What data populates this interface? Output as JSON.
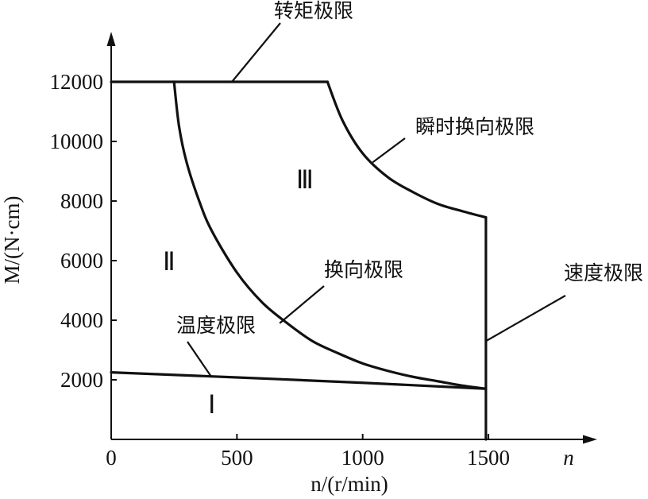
{
  "chart_data": {
    "type": "line",
    "xlabel": "n/(r/min)",
    "ylabel": "M/(N·cm)",
    "x_end_label": "n",
    "xlim": [
      0,
      1800
    ],
    "ylim": [
      0,
      13600
    ],
    "x_ticks": [
      0,
      500,
      1000,
      1500
    ],
    "y_ticks": [
      2000,
      4000,
      6000,
      8000,
      10000,
      12000
    ],
    "series": [
      {
        "name": "转矩极限",
        "x": [
          0,
          860
        ],
        "y": [
          12000,
          12000
        ]
      },
      {
        "name": "瞬时换向极限",
        "x": [
          860,
          920,
          1000,
          1100,
          1200,
          1300,
          1400,
          1490
        ],
        "y": [
          12000,
          10700,
          9600,
          8800,
          8300,
          7900,
          7650,
          7450
        ]
      },
      {
        "name": "速度极限",
        "x": [
          1490,
          1490
        ],
        "y": [
          7450,
          0
        ]
      },
      {
        "name": "换向极限",
        "x": [
          250,
          270,
          300,
          350,
          400,
          500,
          600,
          700,
          800,
          900,
          1000,
          1100,
          1200,
          1300,
          1400,
          1490
        ],
        "y": [
          12000,
          10500,
          9300,
          8000,
          7000,
          5600,
          4600,
          3900,
          3300,
          2900,
          2550,
          2300,
          2100,
          1950,
          1800,
          1700
        ]
      },
      {
        "name": "温度极限",
        "x": [
          0,
          500,
          1000,
          1490
        ],
        "y": [
          2250,
          2080,
          1900,
          1700
        ]
      }
    ],
    "annotations": [
      {
        "text": "转矩极限",
        "target": [
          480,
          12000
        ]
      },
      {
        "text": "瞬时换向极限",
        "target": [
          1040,
          9300
        ]
      },
      {
        "text": "换向极限",
        "target": [
          670,
          3900
        ]
      },
      {
        "text": "温度极限",
        "target": [
          400,
          2080
        ]
      },
      {
        "text": "速度极限",
        "target": [
          1490,
          3300
        ]
      }
    ],
    "regions": [
      {
        "text": "Ⅰ",
        "at": [
          400,
          1200
        ]
      },
      {
        "text": "Ⅱ",
        "at": [
          230,
          6000
        ]
      },
      {
        "text": "Ⅲ",
        "at": [
          770,
          8750
        ]
      }
    ],
    "grid": false,
    "legend": "none"
  }
}
